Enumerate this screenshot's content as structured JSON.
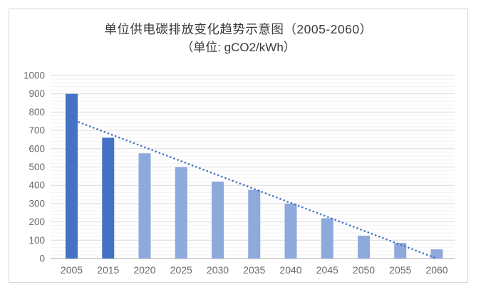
{
  "chart_data": {
    "type": "bar",
    "title": "单位供电碳排放变化趋势示意图（2005-2060）",
    "subtitle": "（单位: gCO2/kWh）",
    "categories": [
      "2005",
      "2015",
      "2020",
      "2025",
      "2030",
      "2035",
      "2040",
      "2045",
      "2050",
      "2055",
      "2060"
    ],
    "values": [
      900,
      660,
      575,
      500,
      420,
      375,
      300,
      220,
      125,
      85,
      50
    ],
    "bar_colors": [
      "#4472C4",
      "#4472C4",
      "#8EA9DB",
      "#8EA9DB",
      "#8EA9DB",
      "#8EA9DB",
      "#8EA9DB",
      "#8EA9DB",
      "#8EA9DB",
      "#8EA9DB",
      "#8EA9DB"
    ],
    "ylim": [
      0,
      1000
    ],
    "yticks": [
      0,
      100,
      200,
      300,
      400,
      500,
      600,
      700,
      800,
      900,
      1000
    ],
    "grid": {
      "major_step": 100,
      "minor_step": 20
    },
    "trendline": {
      "type": "linear",
      "style": "dotted",
      "color": "#4472C4",
      "start_value": 760,
      "end_value": 0
    },
    "legend": "none",
    "xlabel": "",
    "ylabel": "",
    "colors": {
      "grid_major": "#D9D9D9",
      "grid_minor": "#F2F2F2",
      "axis_line": "#C6C6C6",
      "tick_label": "#696969",
      "title_text": "#3A3A3A",
      "border": "#D4D4D4"
    }
  }
}
